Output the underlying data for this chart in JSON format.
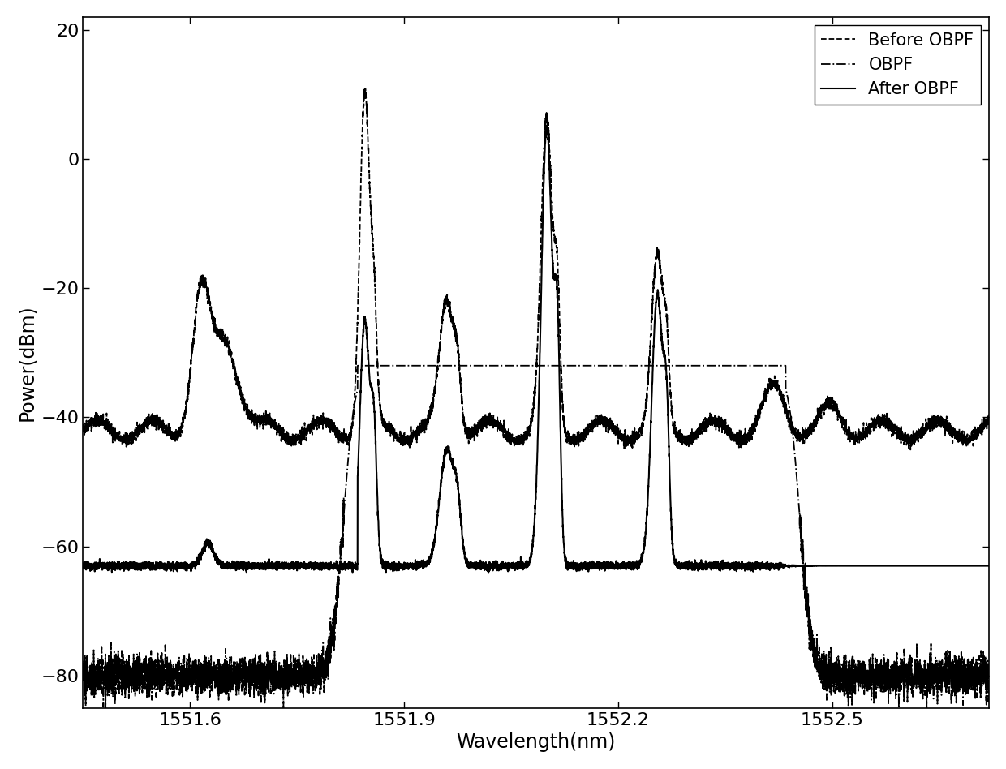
{
  "title": "",
  "xlabel": "Wavelength(nm)",
  "ylabel": "Power(dBm)",
  "xlim": [
    1551.45,
    1552.72
  ],
  "ylim": [
    -85,
    22
  ],
  "yticks": [
    -80,
    -60,
    -40,
    -20,
    0,
    20
  ],
  "xticks": [
    1551.6,
    1551.9,
    1552.2,
    1552.5
  ],
  "legend_labels": [
    "Before OBPF",
    "OBPF",
    "After OBPF"
  ],
  "background_color": "#ffffff",
  "line_color": "#000000",
  "fontsize_ticks": 16,
  "fontsize_labels": 17,
  "fontsize_legend": 15
}
